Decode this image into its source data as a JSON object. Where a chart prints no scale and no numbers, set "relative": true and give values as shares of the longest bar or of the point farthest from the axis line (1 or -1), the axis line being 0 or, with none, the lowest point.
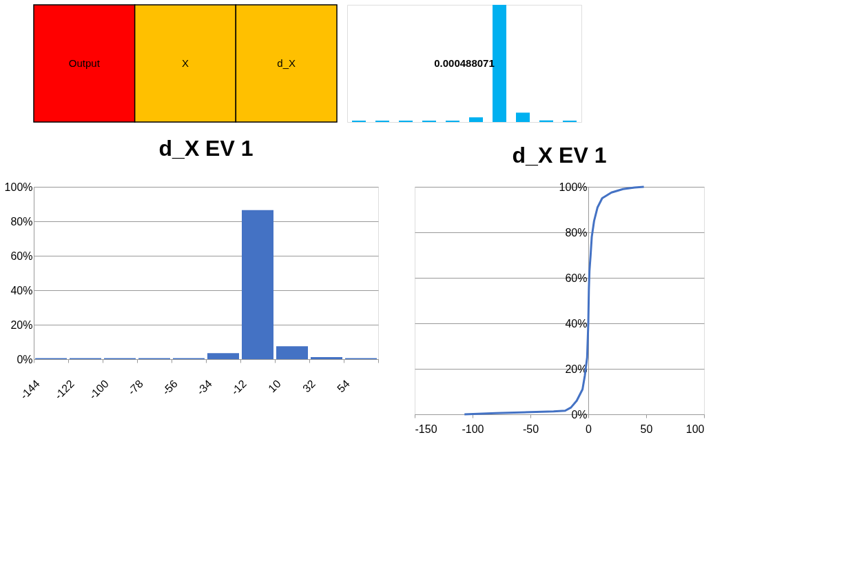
{
  "chart_data": [
    {
      "type": "other",
      "categories": [
        "Output",
        "X",
        "d_X"
      ],
      "colors": [
        "#ff0000",
        "#ffc000",
        "#ffc000"
      ]
    },
    {
      "type": "bar",
      "relative": true,
      "categories": [
        null,
        null,
        null,
        null,
        null,
        null,
        null,
        null,
        null,
        null
      ],
      "values": [
        0.012,
        0.012,
        0.012,
        0.012,
        0.012,
        0.04,
        1,
        0.08,
        0.014,
        0.012
      ],
      "color": "#00b0f0",
      "annotations": [
        "0.000488071"
      ]
    },
    {
      "type": "histogram",
      "title": "d_X EV 1",
      "bins": [
        -144,
        -122,
        -100,
        -78,
        -56,
        -34,
        -12,
        10,
        32,
        54,
        76
      ],
      "values": [
        0.6,
        0.6,
        0.6,
        0.6,
        0.6,
        3.5,
        86.5,
        7.5,
        1.2,
        0.6
      ],
      "color": "#4472c4",
      "xlim": [
        -144,
        76
      ],
      "xticks": [
        -144,
        -122,
        -100,
        -78,
        -56,
        -34,
        -12,
        10,
        32,
        54,
        {
          "value": 76,
          "label": null
        }
      ],
      "ylim": [
        0,
        100
      ],
      "yticks": [
        {
          "value": 0,
          "label": "0%"
        },
        {
          "value": 20,
          "label": "20%"
        },
        {
          "value": 40,
          "label": "40%"
        },
        {
          "value": 60,
          "label": "60%"
        },
        {
          "value": 80,
          "label": "80%"
        },
        {
          "value": 100,
          "label": "100%"
        }
      ],
      "grid": "y"
    },
    {
      "type": "line",
      "title": "d_X EV 1",
      "x": [
        -107,
        -80,
        -50,
        -30,
        -20,
        -15,
        -10,
        -5,
        -3,
        -1,
        0,
        0.5,
        1,
        2,
        3,
        5,
        8,
        12,
        20,
        30,
        40,
        48
      ],
      "values": [
        0,
        0.5,
        1,
        1.3,
        1.6,
        3,
        6,
        11,
        17,
        25,
        40,
        55,
        63,
        70,
        78,
        85,
        91,
        95,
        97.5,
        99,
        99.7,
        100
      ],
      "color": "#4472c4",
      "xlim": [
        -150,
        100
      ],
      "xticks": [
        -150,
        -100,
        -50,
        0,
        50,
        100
      ],
      "ylim": [
        0,
        100
      ],
      "yticks": [
        {
          "value": 0,
          "label": "0%"
        },
        {
          "value": 20,
          "label": "20%"
        },
        {
          "value": 40,
          "label": "40%"
        },
        {
          "value": 60,
          "label": "60%"
        },
        {
          "value": 80,
          "label": "80%"
        },
        {
          "value": 100,
          "label": "100%"
        }
      ],
      "grid": "y",
      "marker": "none",
      "line_style": "solid"
    }
  ]
}
